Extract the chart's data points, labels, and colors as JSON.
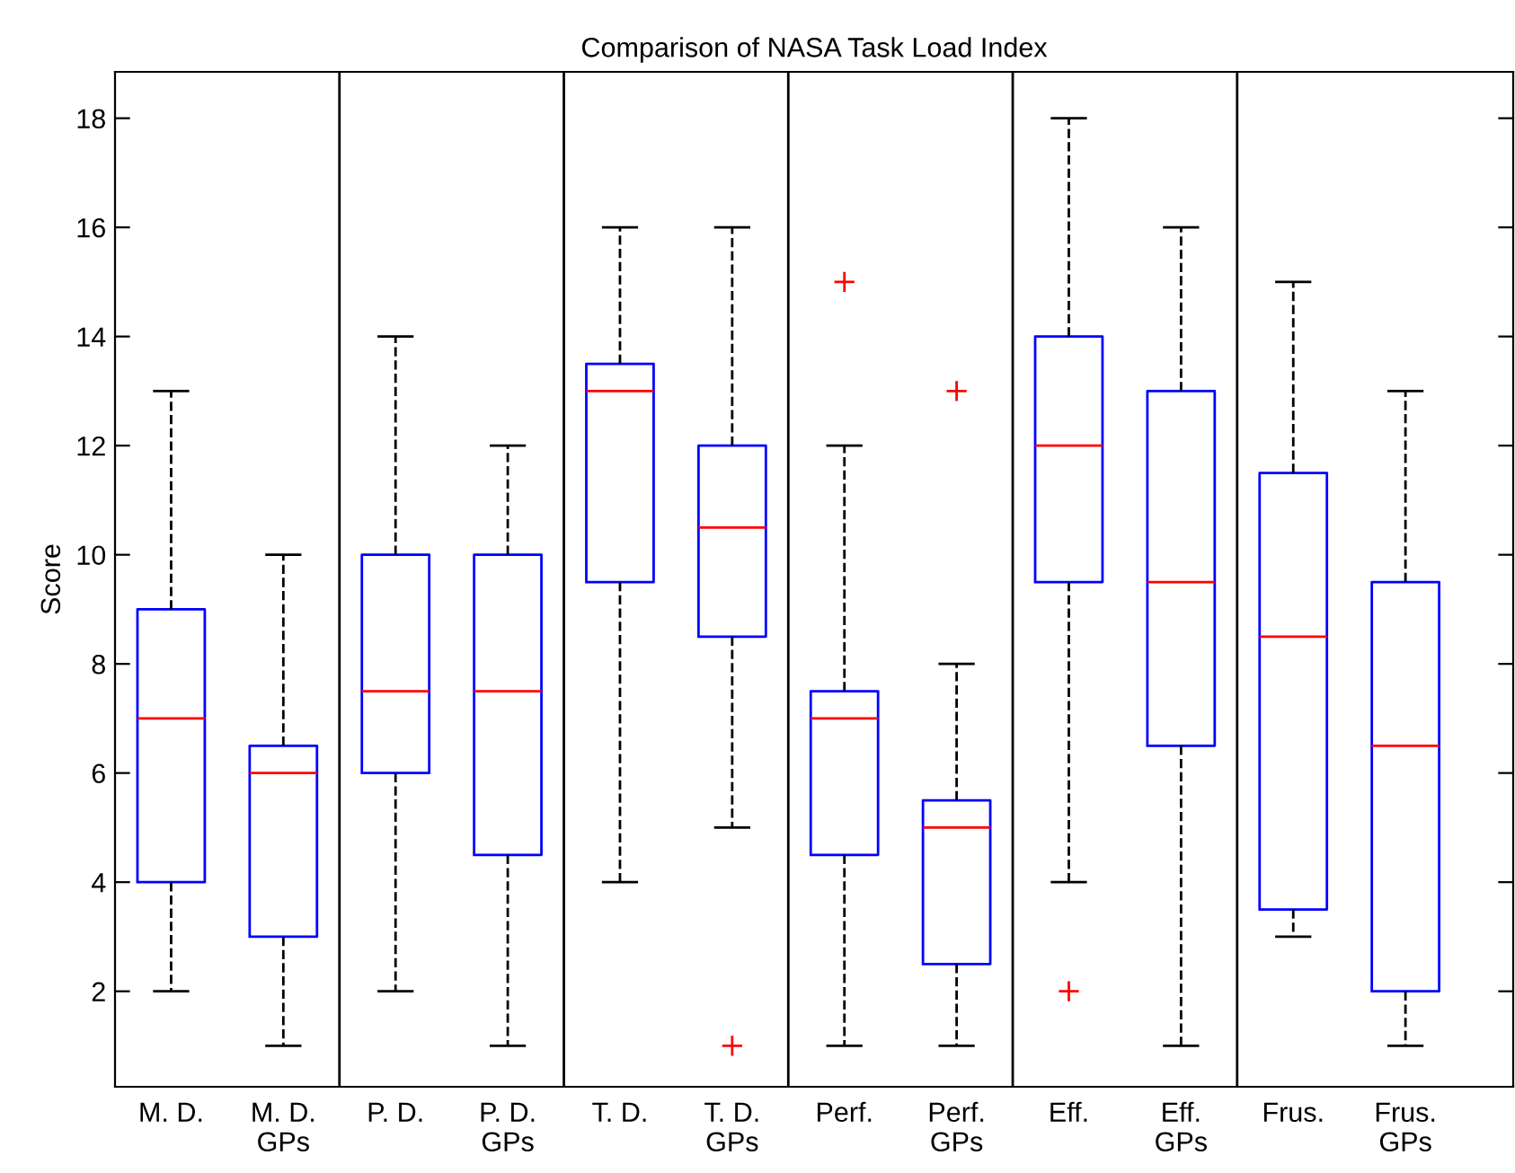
{
  "chart_data": {
    "type": "box",
    "title": "Comparison of NASA Task Load Index",
    "ylabel": "Score",
    "categories": [
      "M. D.",
      "M. D.\nGPs",
      "P. D.",
      "P. D.\nGPs",
      "T. D.",
      "T. D.\nGPs",
      "Perf.",
      "Perf.\nGPs",
      "Eff.",
      "Eff.\nGPs",
      "Frus.",
      "Frus.\nGPs"
    ],
    "color": "#0000ff",
    "marker": "cross",
    "line_style": "dashed",
    "grid": false,
    "boxes": [
      {
        "low": 2,
        "q1": 4,
        "median": 7,
        "q3": 9,
        "high": 13
      },
      {
        "low": 1,
        "q1": 3,
        "median": 6,
        "q3": 6.5,
        "high": 10
      },
      {
        "low": 2,
        "q1": 6,
        "median": 7.5,
        "q3": 10,
        "high": 14
      },
      {
        "low": 1,
        "q1": 4.5,
        "median": 7.5,
        "q3": 10,
        "high": 12
      },
      {
        "low": 4,
        "q1": 9.5,
        "median": 13,
        "q3": 13.5,
        "high": 16
      },
      {
        "low": 5,
        "q1": 8.5,
        "median": 10.5,
        "q3": 12,
        "high": 16,
        "outliers": [
          1
        ]
      },
      {
        "low": 1,
        "q1": 4.5,
        "median": 7,
        "q3": 7.5,
        "high": 12,
        "outliers": [
          15
        ]
      },
      {
        "low": 1,
        "q1": 2.5,
        "median": 5,
        "q3": 5.5,
        "high": 8,
        "outliers": [
          13
        ]
      },
      {
        "low": 4,
        "q1": 9.5,
        "median": 12,
        "q3": 14,
        "high": 18,
        "outliers": [
          2
        ]
      },
      {
        "low": 1,
        "q1": 6.5,
        "median": 9.5,
        "q3": 13,
        "high": 16
      },
      {
        "low": 3,
        "q1": 3.5,
        "median": 8.5,
        "q3": 11.5,
        "high": 15
      },
      {
        "low": 1,
        "q1": 2,
        "median": 6.5,
        "q3": 9.5,
        "high": 13
      }
    ],
    "ylim": [
      0.25,
      18.85
    ],
    "yticks": [
      2,
      4,
      6,
      8,
      10,
      12,
      14,
      16,
      18
    ]
  }
}
